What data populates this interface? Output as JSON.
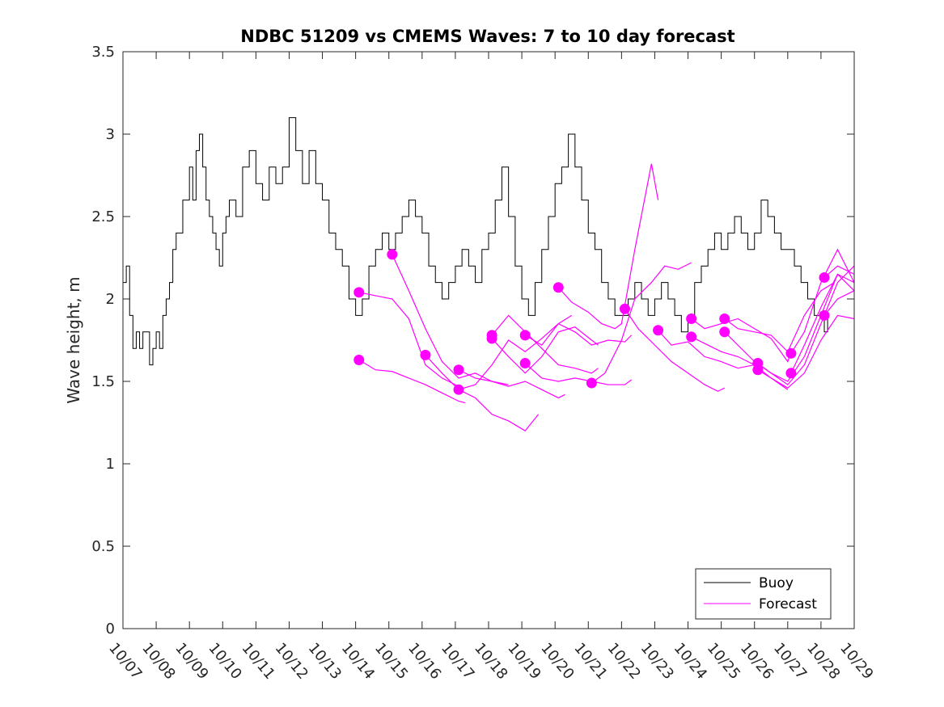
{
  "chart_data": {
    "type": "line",
    "title": "NDBC 51209 vs CMEMS Waves: 7 to 10 day forecast",
    "xlabel": "",
    "ylabel": "Wave height, m",
    "xlim": [
      0,
      22
    ],
    "ylim": [
      0,
      3.5
    ],
    "x_tick_labels": [
      "10/07",
      "10/08",
      "10/09",
      "10/10",
      "10/11",
      "10/12",
      "10/13",
      "10/14",
      "10/15",
      "10/16",
      "10/17",
      "10/18",
      "10/19",
      "10/20",
      "10/21",
      "10/22",
      "10/23",
      "10/24",
      "10/25",
      "10/26",
      "10/27",
      "10/28",
      "10/29"
    ],
    "y_ticks": [
      0,
      0.5,
      1,
      1.5,
      2,
      2.5,
      3,
      3.5
    ],
    "y_tick_labels": [
      "0",
      "0.5",
      "1",
      "1.5",
      "2",
      "2.5",
      "3",
      "3.5"
    ],
    "x_units": "days since 10/07",
    "legend": {
      "position": "bottom-right",
      "entries": [
        "Buoy",
        "Forecast"
      ]
    },
    "colors": {
      "buoy": "#000000",
      "forecast": "#ff00ff"
    },
    "series": [
      {
        "name": "Buoy",
        "type": "line",
        "x": [
          0,
          0.1,
          0.2,
          0.3,
          0.4,
          0.5,
          0.6,
          0.7,
          0.8,
          0.9,
          1.0,
          1.1,
          1.2,
          1.3,
          1.4,
          1.5,
          1.6,
          1.8,
          2.0,
          2.1,
          2.2,
          2.3,
          2.4,
          2.5,
          2.6,
          2.7,
          2.8,
          2.9,
          3.0,
          3.1,
          3.2,
          3.4,
          3.6,
          3.8,
          4.0,
          4.2,
          4.4,
          4.6,
          4.8,
          5.0,
          5.2,
          5.4,
          5.6,
          5.8,
          6.0,
          6.2,
          6.4,
          6.6,
          6.8,
          7.0,
          7.2,
          7.4,
          7.6,
          7.8,
          8.0,
          8.2,
          8.4,
          8.6,
          8.8,
          9.0,
          9.2,
          9.4,
          9.6,
          9.8,
          10.0,
          10.2,
          10.4,
          10.6,
          10.8,
          11.0,
          11.2,
          11.4,
          11.6,
          11.8,
          12.0,
          12.2,
          12.4,
          12.6,
          12.8,
          13.0,
          13.2,
          13.4,
          13.6,
          13.8,
          14.0,
          14.2,
          14.4,
          14.6,
          14.8,
          15.0,
          15.2,
          15.4,
          15.6,
          15.8,
          16.0,
          16.2,
          16.4,
          16.6,
          16.8,
          17.0,
          17.2,
          17.4,
          17.6,
          17.8,
          18.0,
          18.2,
          18.4,
          18.6,
          18.8,
          19.0,
          19.2,
          19.4,
          19.6,
          19.8,
          20.0,
          20.2,
          20.4,
          20.6,
          20.8,
          21.0,
          21.1,
          21.2
        ],
        "y": [
          2.1,
          2.2,
          1.9,
          1.7,
          1.8,
          1.7,
          1.8,
          1.8,
          1.6,
          1.7,
          1.8,
          1.7,
          1.9,
          2.0,
          2.1,
          2.3,
          2.4,
          2.6,
          2.8,
          2.6,
          2.9,
          3.0,
          2.8,
          2.6,
          2.5,
          2.4,
          2.3,
          2.2,
          2.4,
          2.5,
          2.6,
          2.5,
          2.8,
          2.9,
          2.7,
          2.6,
          2.8,
          2.7,
          2.8,
          3.1,
          2.9,
          2.7,
          2.9,
          2.7,
          2.6,
          2.4,
          2.3,
          2.2,
          2.0,
          1.9,
          2.0,
          2.2,
          2.3,
          2.4,
          2.3,
          2.4,
          2.5,
          2.6,
          2.5,
          2.4,
          2.2,
          2.1,
          2.0,
          2.1,
          2.2,
          2.3,
          2.2,
          2.1,
          2.3,
          2.4,
          2.6,
          2.8,
          2.5,
          2.2,
          2.0,
          1.9,
          2.1,
          2.3,
          2.5,
          2.7,
          2.8,
          3.0,
          2.8,
          2.6,
          2.4,
          2.3,
          2.1,
          2.0,
          1.9,
          1.9,
          2.0,
          2.1,
          2.0,
          1.9,
          2.0,
          2.1,
          2.0,
          1.9,
          1.8,
          1.9,
          2.1,
          2.2,
          2.3,
          2.4,
          2.3,
          2.4,
          2.5,
          2.4,
          2.3,
          2.4,
          2.6,
          2.5,
          2.4,
          2.3,
          2.3,
          2.2,
          2.1,
          2.0,
          1.9,
          1.9,
          1.8,
          1.9
        ]
      },
      {
        "name": "Forecast",
        "type": "line",
        "start_marker": true,
        "x": [
          7.1,
          7.6,
          8.1,
          8.6,
          9.1,
          9.6,
          10.1
        ],
        "y": [
          2.04,
          2.02,
          2.0,
          1.88,
          1.6,
          1.52,
          1.47
        ]
      },
      {
        "name": "Forecast",
        "type": "line",
        "start_marker": true,
        "x": [
          7.1,
          7.6,
          8.1,
          8.6,
          9.1,
          9.6,
          10.1,
          10.3
        ],
        "y": [
          1.63,
          1.57,
          1.56,
          1.52,
          1.48,
          1.43,
          1.38,
          1.37
        ]
      },
      {
        "name": "Forecast",
        "type": "line",
        "start_marker": true,
        "x": [
          8.1,
          8.6,
          9.1,
          9.6,
          10.1,
          10.6,
          11.1,
          11.6
        ],
        "y": [
          2.27,
          2.05,
          1.82,
          1.62,
          1.52,
          1.55,
          1.5,
          1.48
        ]
      },
      {
        "name": "Forecast",
        "type": "line",
        "start_marker": true,
        "x": [
          9.1,
          9.6,
          10.1,
          10.6,
          11.1,
          11.6,
          12.1,
          12.5
        ],
        "y": [
          1.66,
          1.55,
          1.45,
          1.4,
          1.3,
          1.26,
          1.2,
          1.3
        ]
      },
      {
        "name": "Forecast",
        "type": "line",
        "start_marker": true,
        "x": [
          10.1,
          10.6,
          11.1,
          11.6,
          12.1,
          12.6,
          13.1,
          13.3
        ],
        "y": [
          1.57,
          1.52,
          1.5,
          1.47,
          1.5,
          1.45,
          1.4,
          1.42
        ]
      },
      {
        "name": "Forecast",
        "type": "line",
        "start_marker": true,
        "x": [
          10.1,
          10.6,
          11.1,
          11.6,
          12.1,
          12.6,
          13.1,
          13.5
        ],
        "y": [
          1.45,
          1.48,
          1.6,
          1.75,
          1.68,
          1.76,
          1.85,
          1.9
        ]
      },
      {
        "name": "Forecast",
        "type": "line",
        "start_marker": true,
        "x": [
          11.1,
          11.6,
          12.1,
          12.6,
          13.1,
          13.6,
          14.1,
          14.3
        ],
        "y": [
          1.78,
          1.9,
          1.8,
          1.7,
          1.6,
          1.58,
          1.55,
          1.58
        ]
      },
      {
        "name": "Forecast",
        "type": "line",
        "start_marker": true,
        "x": [
          11.1,
          11.6,
          12.1,
          12.6,
          13.1,
          13.6,
          14.1,
          14.3
        ],
        "y": [
          1.76,
          1.65,
          1.55,
          1.65,
          1.8,
          1.83,
          1.75,
          1.72
        ]
      },
      {
        "name": "Forecast",
        "type": "line",
        "start_marker": true,
        "x": [
          12.1,
          12.6,
          13.1,
          13.6,
          14.1,
          14.6,
          15.1,
          15.3
        ],
        "y": [
          1.78,
          1.72,
          1.85,
          1.8,
          1.72,
          1.75,
          1.74,
          1.78
        ]
      },
      {
        "name": "Forecast",
        "type": "line",
        "start_marker": true,
        "x": [
          12.1,
          12.6,
          13.1,
          13.6,
          14.1,
          14.6,
          15.1,
          15.3
        ],
        "y": [
          1.61,
          1.52,
          1.5,
          1.52,
          1.5,
          1.48,
          1.48,
          1.51
        ]
      },
      {
        "name": "Forecast",
        "type": "line",
        "start_marker": true,
        "x": [
          13.1,
          13.5,
          14.0,
          14.4,
          14.8,
          15.0,
          15.4,
          15.9,
          16.1
        ],
        "y": [
          2.07,
          1.98,
          1.92,
          1.85,
          1.82,
          1.85,
          2.3,
          2.82,
          2.6
        ]
      },
      {
        "name": "Forecast",
        "type": "line",
        "start_marker": true,
        "x": [
          14.1,
          14.5,
          15.0,
          15.4,
          15.9,
          16.3,
          16.7,
          17.1
        ],
        "y": [
          1.49,
          1.55,
          1.75,
          2.0,
          2.1,
          2.2,
          2.18,
          2.22
        ]
      },
      {
        "name": "Forecast",
        "type": "line",
        "start_marker": true,
        "x": [
          15.1,
          15.5,
          16.0,
          16.5,
          17.0,
          17.5,
          17.9,
          18.1
        ],
        "y": [
          1.94,
          1.82,
          1.72,
          1.62,
          1.55,
          1.48,
          1.44,
          1.46
        ]
      },
      {
        "name": "Forecast",
        "type": "line",
        "start_marker": true,
        "x": [
          16.1,
          16.5,
          17.0,
          17.5,
          18.0,
          18.5,
          19.0,
          19.2
        ],
        "y": [
          1.81,
          1.72,
          1.74,
          1.65,
          1.62,
          1.58,
          1.6,
          1.62
        ]
      },
      {
        "name": "Forecast",
        "type": "line",
        "start_marker": true,
        "x": [
          17.1,
          17.5,
          18.0,
          18.5,
          19.0,
          19.5,
          20.0,
          20.1
        ],
        "y": [
          1.88,
          1.82,
          1.85,
          1.88,
          1.82,
          1.76,
          1.62,
          1.68
        ]
      },
      {
        "name": "Forecast",
        "type": "line",
        "start_marker": true,
        "x": [
          17.1,
          17.5,
          18.0,
          18.5,
          19.0,
          19.5,
          20.0
        ],
        "y": [
          1.77,
          1.73,
          1.68,
          1.65,
          1.6,
          1.52,
          1.45
        ]
      },
      {
        "name": "Forecast",
        "type": "line",
        "start_marker": true,
        "x": [
          18.1,
          18.5,
          19.0,
          19.5,
          20.0,
          20.5,
          21.0,
          21.4
        ],
        "y": [
          1.88,
          1.82,
          1.8,
          1.78,
          1.68,
          1.9,
          2.05,
          2.1
        ]
      },
      {
        "name": "Forecast",
        "type": "line",
        "start_marker": true,
        "x": [
          18.1,
          18.5,
          19.0,
          19.5,
          20.0,
          20.5,
          21.0,
          21.5,
          22.0
        ],
        "y": [
          1.8,
          1.72,
          1.62,
          1.55,
          1.5,
          1.65,
          1.9,
          2.15,
          2.1
        ]
      },
      {
        "name": "Forecast",
        "type": "line",
        "start_marker": true,
        "x": [
          19.1,
          19.5,
          20.0,
          20.5,
          21.0,
          21.5,
          22.0
        ],
        "y": [
          1.61,
          1.55,
          1.48,
          1.6,
          1.85,
          2.1,
          2.2
        ]
      },
      {
        "name": "Forecast",
        "type": "line",
        "start_marker": true,
        "x": [
          19.1,
          19.5,
          20.0,
          20.5,
          21.0,
          21.5,
          22.0
        ],
        "y": [
          1.57,
          1.52,
          1.46,
          1.55,
          1.75,
          1.9,
          1.88
        ]
      },
      {
        "name": "Forecast",
        "type": "line",
        "start_marker": true,
        "x": [
          20.1,
          20.5,
          21.0,
          21.5,
          22.0
        ],
        "y": [
          1.67,
          1.8,
          2.1,
          2.3,
          2.1
        ]
      },
      {
        "name": "Forecast",
        "type": "line",
        "start_marker": true,
        "x": [
          20.1,
          20.5,
          21.0,
          21.5,
          22.0
        ],
        "y": [
          1.55,
          1.72,
          1.95,
          2.15,
          2.05
        ]
      },
      {
        "name": "Forecast",
        "type": "line",
        "start_marker": true,
        "x": [
          21.1,
          21.5,
          22.0
        ],
        "y": [
          2.13,
          2.2,
          2.15
        ]
      },
      {
        "name": "Forecast",
        "type": "line",
        "start_marker": true,
        "x": [
          21.1,
          21.5,
          22.0
        ],
        "y": [
          1.9,
          2.0,
          2.05
        ]
      }
    ]
  }
}
